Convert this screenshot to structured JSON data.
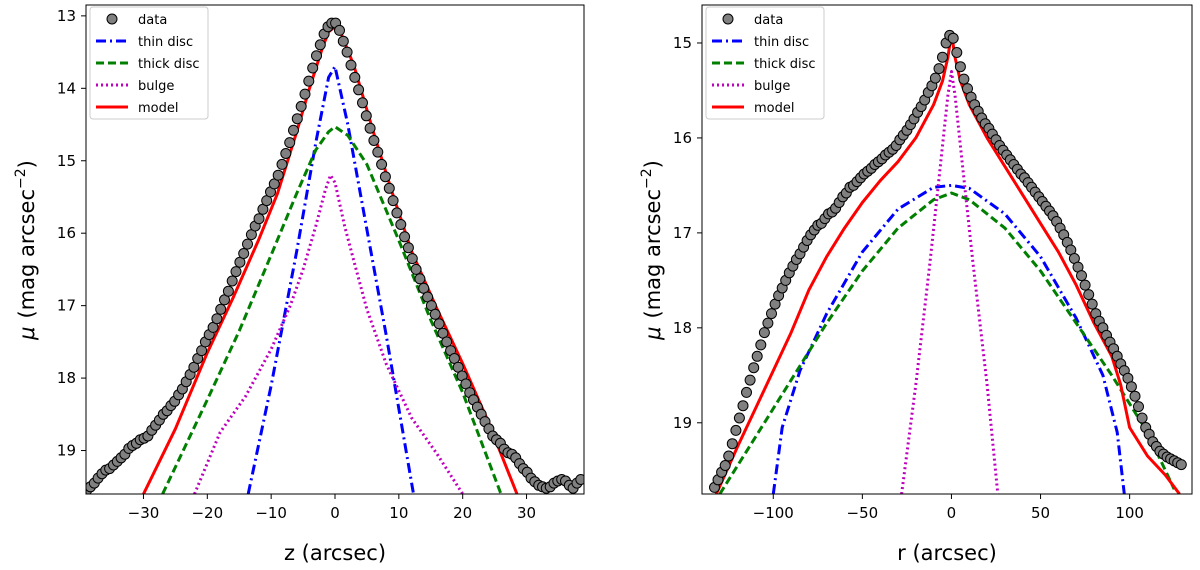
{
  "chart_data": [
    {
      "type": "line",
      "panel": "left",
      "xlabel": "z (arcsec)",
      "ylabel_prefix": "μ",
      "ylabel": "(mag arcsec",
      "ylabel_sup": "−2",
      "ylabel_close": ")",
      "xlim": [
        -39,
        39
      ],
      "ylim": [
        19.6,
        12.85
      ],
      "xticks": [
        -30,
        -20,
        -10,
        0,
        10,
        20,
        30
      ],
      "xtick_labels": [
        "−30",
        "−20",
        "−10",
        "0",
        "10",
        "20",
        "30"
      ],
      "yticks": [
        13,
        14,
        15,
        16,
        17,
        18,
        19
      ],
      "ytick_labels": [
        "13",
        "14",
        "15",
        "16",
        "17",
        "18",
        "19"
      ],
      "legend": [
        "data",
        "thin disc",
        "thick disc",
        "bulge",
        "model"
      ],
      "legend_position": "top-left",
      "series": [
        {
          "name": "thin disc",
          "color": "#0000ff",
          "style": "dashdot",
          "x": [
            -13.6,
            -10,
            -6,
            -3,
            -1,
            0,
            2,
            5,
            8,
            12.3
          ],
          "y": [
            19.6,
            18.1,
            16.25,
            14.75,
            13.85,
            13.7,
            14.5,
            15.95,
            17.4,
            19.6
          ]
        },
        {
          "name": "thick disc",
          "color": "#007f00",
          "style": "dashed",
          "x": [
            -27,
            -20,
            -15,
            -10,
            -6,
            -3,
            -1,
            0,
            2,
            5,
            10,
            15,
            20,
            26
          ],
          "y": [
            19.6,
            18.3,
            17.35,
            16.3,
            15.45,
            14.85,
            14.6,
            14.53,
            14.65,
            15.05,
            16.1,
            17.2,
            18.2,
            19.6
          ]
        },
        {
          "name": "bulge",
          "color": "#bf00bf",
          "style": "dotted",
          "x": [
            -22,
            -18,
            -14,
            -10,
            -7,
            -5,
            -3,
            -1.5,
            -0.7,
            0,
            1.5,
            3,
            5,
            8,
            12,
            16,
            20
          ],
          "y": [
            19.6,
            18.75,
            18.25,
            17.6,
            17.0,
            16.5,
            15.9,
            15.4,
            15.2,
            15.3,
            15.9,
            16.4,
            17.05,
            17.8,
            18.55,
            19.05,
            19.6
          ]
        },
        {
          "name": "model",
          "color": "#ff0000",
          "style": "solid",
          "x": [
            -30,
            -25,
            -20,
            -16,
            -12,
            -9,
            -6,
            -4,
            -2,
            -1,
            0,
            1,
            3,
            6,
            9,
            12,
            16,
            20,
            24,
            28.5
          ],
          "y": [
            19.6,
            18.7,
            17.65,
            16.9,
            16.1,
            15.45,
            14.6,
            14.0,
            13.45,
            13.22,
            13.15,
            13.25,
            13.7,
            14.6,
            15.45,
            16.25,
            17.05,
            17.8,
            18.6,
            19.6
          ]
        },
        {
          "name": "data",
          "color": "#808080",
          "style": "markers",
          "x": [
            -38.9,
            -38.3,
            -37.7,
            -37.1,
            -36.5,
            -35.9,
            -35.3,
            -34.7,
            -34.1,
            -33.5,
            -32.9,
            -32.3,
            -31.7,
            -31.1,
            -30.5,
            -29.9,
            -29.3,
            -28.7,
            -28.1,
            -27.5,
            -26.9,
            -26.3,
            -25.7,
            -25.1,
            -24.5,
            -23.9,
            -23.3,
            -22.7,
            -22.1,
            -21.5,
            -20.9,
            -20.3,
            -19.7,
            -19.1,
            -18.5,
            -17.9,
            -17.3,
            -16.7,
            -16.1,
            -15.5,
            -14.9,
            -14.3,
            -13.7,
            -13.1,
            -12.5,
            -11.9,
            -11.3,
            -10.7,
            -10.1,
            -9.5,
            -8.9,
            -8.3,
            -7.7,
            -7.1,
            -6.5,
            -5.9,
            -5.3,
            -4.7,
            -4.1,
            -3.5,
            -2.9,
            -2.3,
            -1.7,
            -1.1,
            -0.5,
            0.1,
            0.7,
            1.3,
            1.9,
            2.5,
            3.1,
            3.7,
            4.3,
            4.9,
            5.5,
            6.1,
            6.7,
            7.3,
            7.9,
            8.5,
            9.1,
            9.7,
            10.3,
            10.9,
            11.5,
            12.1,
            12.7,
            13.3,
            13.9,
            14.5,
            15.1,
            15.7,
            16.3,
            16.9,
            17.5,
            18.1,
            18.7,
            19.3,
            19.9,
            20.5,
            21.1,
            21.7,
            22.3,
            22.9,
            23.5,
            24.1,
            24.7,
            25.3,
            25.9,
            26.5,
            27.1,
            27.7,
            28.3,
            28.9,
            29.5,
            30.1,
            30.7,
            31.3,
            31.9,
            32.5,
            33.1,
            33.7,
            34.3,
            34.9,
            35.5,
            36.1,
            36.7,
            37.3,
            37.9,
            38.5
          ],
          "y": [
            19.55,
            19.5,
            19.45,
            19.38,
            19.32,
            19.27,
            19.25,
            19.2,
            19.15,
            19.1,
            19.05,
            18.97,
            18.93,
            18.9,
            18.85,
            18.83,
            18.8,
            18.72,
            18.65,
            18.58,
            18.5,
            18.45,
            18.38,
            18.32,
            18.23,
            18.15,
            18.05,
            17.95,
            17.85,
            17.73,
            17.62,
            17.5,
            17.4,
            17.3,
            17.18,
            17.05,
            16.92,
            16.8,
            16.66,
            16.53,
            16.4,
            16.28,
            16.15,
            16.02,
            15.9,
            15.8,
            15.67,
            15.55,
            15.43,
            15.32,
            15.2,
            15.05,
            14.9,
            14.75,
            14.58,
            14.42,
            14.25,
            14.08,
            13.9,
            13.72,
            13.55,
            13.4,
            13.25,
            13.15,
            13.1,
            13.1,
            13.2,
            13.35,
            13.5,
            13.68,
            13.85,
            14.02,
            14.2,
            14.38,
            14.55,
            14.72,
            14.88,
            15.05,
            15.22,
            15.38,
            15.55,
            15.72,
            15.88,
            16.05,
            16.2,
            16.35,
            16.5,
            16.63,
            16.76,
            16.88,
            17.0,
            17.12,
            17.25,
            17.38,
            17.5,
            17.62,
            17.73,
            17.85,
            17.97,
            18.08,
            18.2,
            18.3,
            18.4,
            18.5,
            18.6,
            18.7,
            18.8,
            18.85,
            18.9,
            18.98,
            19.03,
            19.05,
            19.1,
            19.18,
            19.25,
            19.3,
            19.38,
            19.43,
            19.48,
            19.5,
            19.52,
            19.5,
            19.45,
            19.42,
            19.4,
            19.42,
            19.48,
            19.52,
            19.45,
            19.4
          ]
        }
      ]
    },
    {
      "type": "line",
      "panel": "right",
      "xlabel": "r (arcsec)",
      "ylabel_prefix": "μ",
      "ylabel": "(mag arcsec",
      "ylabel_sup": "−2",
      "ylabel_close": ")",
      "xlim": [
        -140,
        135
      ],
      "ylim": [
        19.75,
        14.6
      ],
      "xticks": [
        -100,
        -50,
        0,
        50,
        100
      ],
      "xtick_labels": [
        "−100",
        "−50",
        "0",
        "50",
        "100"
      ],
      "yticks": [
        15,
        16,
        17,
        18,
        19
      ],
      "ytick_labels": [
        "15",
        "16",
        "17",
        "18",
        "19"
      ],
      "legend": [
        "data",
        "thin disc",
        "thick disc",
        "bulge",
        "model"
      ],
      "legend_position": "top-left",
      "series": [
        {
          "name": "thin disc",
          "color": "#0000ff",
          "style": "dashdot",
          "x": [
            -100,
            -95,
            -85,
            -70,
            -50,
            -30,
            -10,
            0,
            10,
            30,
            50,
            70,
            85,
            93,
            97
          ],
          "y": [
            19.75,
            19.05,
            18.45,
            17.85,
            17.2,
            16.75,
            16.52,
            16.5,
            16.53,
            16.8,
            17.25,
            17.9,
            18.5,
            19.1,
            19.75
          ]
        },
        {
          "name": "thick disc",
          "color": "#007f00",
          "style": "dashed",
          "x": [
            -130,
            -110,
            -90,
            -70,
            -50,
            -30,
            -10,
            0,
            10,
            30,
            50,
            70,
            90,
            110,
            125
          ],
          "y": [
            19.75,
            19.15,
            18.55,
            17.95,
            17.4,
            16.95,
            16.65,
            16.58,
            16.65,
            16.95,
            17.4,
            17.95,
            18.5,
            19.1,
            19.7
          ]
        },
        {
          "name": "bulge",
          "color": "#bf00bf",
          "style": "dotted",
          "x": [
            -28,
            -20,
            -12,
            -6,
            -2,
            0,
            2,
            6,
            12,
            20,
            26
          ],
          "y": [
            19.75,
            18.6,
            17.3,
            16.25,
            15.55,
            15.3,
            15.55,
            16.25,
            17.3,
            18.6,
            19.75
          ]
        },
        {
          "name": "model",
          "color": "#ff0000",
          "style": "solid",
          "x": [
            -132,
            -120,
            -110,
            -100,
            -90,
            -80,
            -70,
            -60,
            -50,
            -40,
            -30,
            -20,
            -10,
            -5,
            -2,
            0,
            2,
            5,
            10,
            20,
            30,
            40,
            50,
            60,
            70,
            80,
            90,
            95,
            100,
            110,
            120,
            128
          ],
          "y": [
            19.75,
            19.25,
            18.85,
            18.45,
            18.05,
            17.6,
            17.25,
            16.95,
            16.68,
            16.45,
            16.25,
            16.0,
            15.65,
            15.4,
            15.15,
            14.9,
            15.15,
            15.4,
            15.65,
            16.0,
            16.3,
            16.6,
            16.9,
            17.2,
            17.55,
            17.95,
            18.3,
            18.6,
            19.05,
            19.35,
            19.55,
            19.75
          ]
        },
        {
          "name": "data",
          "color": "#808080",
          "style": "markers",
          "x": [
            -133,
            -131,
            -129,
            -127,
            -125,
            -123,
            -121,
            -119,
            -117,
            -115,
            -113,
            -111,
            -109,
            -107,
            -105,
            -103,
            -101,
            -99,
            -97,
            -95,
            -93,
            -91,
            -89,
            -87,
            -85,
            -83,
            -81,
            -79,
            -77,
            -75,
            -73,
            -71,
            -69,
            -67,
            -65,
            -63,
            -61,
            -59,
            -57,
            -55,
            -53,
            -51,
            -49,
            -47,
            -45,
            -43,
            -41,
            -39,
            -37,
            -35,
            -33,
            -31,
            -29,
            -27,
            -25,
            -23,
            -21,
            -19,
            -17,
            -15,
            -13,
            -11,
            -9,
            -7,
            -5,
            -3,
            -1,
            1,
            3,
            5,
            7,
            9,
            11,
            13,
            15,
            17,
            19,
            21,
            23,
            25,
            27,
            29,
            31,
            33,
            35,
            37,
            39,
            41,
            43,
            45,
            47,
            49,
            51,
            53,
            55,
            57,
            59,
            61,
            63,
            65,
            67,
            69,
            71,
            73,
            75,
            77,
            79,
            81,
            83,
            85,
            87,
            89,
            91,
            93,
            95,
            97,
            99,
            101,
            103,
            105,
            107,
            109,
            111,
            113,
            115,
            117,
            119,
            121,
            123,
            125,
            127,
            129
          ],
          "y": [
            19.68,
            19.6,
            19.52,
            19.45,
            19.35,
            19.22,
            19.08,
            18.95,
            18.82,
            18.68,
            18.55,
            18.42,
            18.3,
            18.18,
            18.05,
            17.95,
            17.85,
            17.75,
            17.66,
            17.58,
            17.5,
            17.42,
            17.35,
            17.28,
            17.22,
            17.15,
            17.08,
            17.02,
            16.97,
            16.92,
            16.9,
            16.85,
            16.8,
            16.78,
            16.74,
            16.68,
            16.62,
            16.58,
            16.52,
            16.5,
            16.46,
            16.42,
            16.38,
            16.35,
            16.32,
            16.28,
            16.25,
            16.22,
            16.18,
            16.15,
            16.12,
            16.08,
            16.02,
            15.97,
            15.92,
            15.86,
            15.8,
            15.73,
            15.67,
            15.6,
            15.52,
            15.45,
            15.37,
            15.27,
            15.15,
            15.0,
            14.92,
            14.95,
            15.1,
            15.25,
            15.38,
            15.48,
            15.57,
            15.65,
            15.72,
            15.79,
            15.85,
            15.9,
            15.96,
            16.02,
            16.08,
            16.13,
            16.18,
            16.23,
            16.28,
            16.33,
            16.38,
            16.42,
            16.47,
            16.52,
            16.57,
            16.62,
            16.67,
            16.72,
            16.77,
            16.82,
            16.88,
            16.95,
            17.02,
            17.1,
            17.18,
            17.27,
            17.36,
            17.45,
            17.55,
            17.65,
            17.75,
            17.85,
            17.93,
            18.0,
            18.08,
            18.15,
            18.22,
            18.3,
            18.38,
            18.45,
            18.53,
            18.62,
            18.72,
            18.83,
            18.95,
            19.05,
            19.12,
            19.2,
            19.25,
            19.3,
            19.33,
            19.36,
            19.38,
            19.4,
            19.42,
            19.44
          ]
        }
      ]
    }
  ]
}
